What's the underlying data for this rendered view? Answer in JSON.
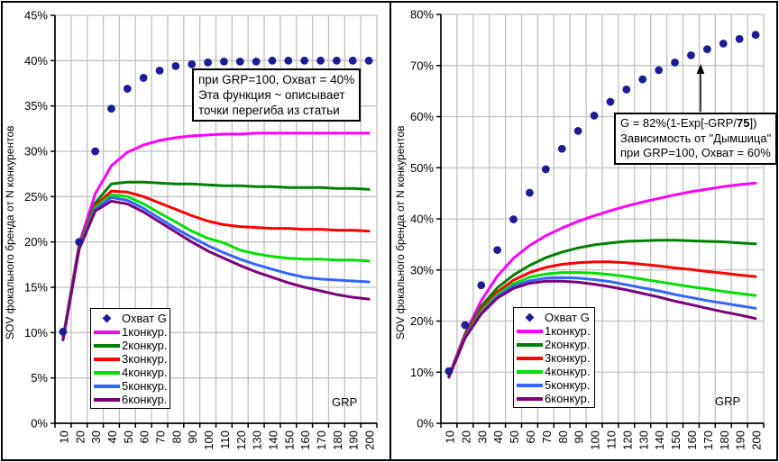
{
  "style": {
    "background": "#ffffff",
    "border_color": "#000000",
    "grid_color": "#c0c0c0",
    "axis_color": "#000000",
    "text_color": "#000000",
    "annotation_border": "#000000"
  },
  "chart_data": [
    {
      "type": "line",
      "title": "",
      "xlabel": "GRP",
      "ylabel": "SOV фокального бренда от N конкурентов",
      "xlim_categories": true,
      "ylim": [
        0,
        45
      ],
      "y_step": 5,
      "grid": true,
      "legend_position": "bottom-left-inside",
      "categories": [
        10,
        20,
        30,
        40,
        50,
        60,
        70,
        80,
        90,
        100,
        110,
        120,
        130,
        140,
        150,
        160,
        170,
        180,
        190,
        200
      ],
      "y_tick_labels": [
        "0%",
        "5%",
        "10%",
        "15%",
        "20%",
        "25%",
        "30%",
        "35%",
        "40%",
        "45%"
      ],
      "scatter": {
        "name": "Охват G",
        "marker": "circle",
        "legend_marker": "diamond",
        "color": "#1c1c96",
        "values": [
          10.1,
          20,
          30,
          34.7,
          36.9,
          38.1,
          38.9,
          39.4,
          39.6,
          39.8,
          39.9,
          39.9,
          39.9,
          40,
          40,
          40,
          40,
          40,
          40,
          40
        ]
      },
      "series": [
        {
          "name": "1конкур.",
          "color": "#ff00ff",
          "values": [
            9.4,
            19.8,
            25.3,
            28.4,
            29.9,
            30.7,
            31.2,
            31.5,
            31.7,
            31.8,
            31.9,
            31.9,
            32,
            32,
            32,
            32,
            32,
            32,
            32,
            32
          ]
        },
        {
          "name": "2конкур.",
          "color": "#008000",
          "values": [
            9.4,
            19.6,
            24.3,
            26.4,
            26.6,
            26.6,
            26.5,
            26.4,
            26.4,
            26.3,
            26.2,
            26.2,
            26.1,
            26.1,
            26,
            26,
            26,
            25.9,
            25.9,
            25.8
          ]
        },
        {
          "name": "3конкур.",
          "color": "#ff0000",
          "values": [
            9.3,
            19.5,
            24,
            25.6,
            25.5,
            25,
            24.3,
            23.6,
            22.9,
            22.3,
            21.9,
            21.7,
            21.6,
            21.5,
            21.5,
            21.4,
            21.4,
            21.3,
            21.3,
            21.2
          ]
        },
        {
          "name": "4конкур.",
          "color": "#00e000",
          "values": [
            9.3,
            19.4,
            23.8,
            25.2,
            25,
            24.2,
            23.2,
            22.2,
            21.2,
            20.4,
            19.9,
            19.1,
            18.7,
            18.4,
            18.2,
            18.1,
            18.1,
            18,
            18,
            17.9
          ]
        },
        {
          "name": "5конкур.",
          "color": "#3366ff",
          "values": [
            9.2,
            19.3,
            23.6,
            24.9,
            24.6,
            23.7,
            22.6,
            21.5,
            20.5,
            19.6,
            18.8,
            18.1,
            17.5,
            17,
            16.5,
            16.1,
            15.9,
            15.8,
            15.7,
            15.6
          ]
        },
        {
          "name": "6конкур.",
          "color": "#7b007b",
          "values": [
            9.2,
            19.2,
            23.4,
            24.5,
            24.2,
            23.3,
            22.2,
            21.1,
            20,
            19,
            18.2,
            17.4,
            16.7,
            16.1,
            15.5,
            15,
            14.6,
            14.2,
            13.9,
            13.7
          ]
        }
      ],
      "annotation": {
        "lines": [
          "при GRP=100, Охват = 40%",
          "Эта функция ~ описывает",
          "точки перегиба из статьи"
        ]
      }
    },
    {
      "type": "line",
      "title": "",
      "xlabel": "GRP",
      "ylabel": "SOV фокального бренда от N конкурентов",
      "xlim_categories": true,
      "ylim": [
        0,
        80
      ],
      "y_step": 10,
      "grid": true,
      "legend_position": "bottom-center-inside",
      "categories": [
        10,
        20,
        30,
        40,
        50,
        60,
        70,
        80,
        90,
        100,
        110,
        120,
        130,
        140,
        150,
        160,
        170,
        180,
        190,
        200
      ],
      "y_tick_labels": [
        "0%",
        "10%",
        "20%",
        "30%",
        "40%",
        "50%",
        "60%",
        "70%",
        "80%"
      ],
      "scatter": {
        "name": "Охват G",
        "marker": "circle",
        "legend_marker": "diamond",
        "color": "#1c1c96",
        "values": [
          10.2,
          19.2,
          27,
          33.9,
          39.9,
          45.1,
          49.7,
          53.7,
          57.2,
          60.2,
          62.9,
          65.3,
          67.3,
          69.1,
          70.6,
          72,
          73.2,
          74.3,
          75.2,
          76
        ]
      },
      "series": [
        {
          "name": "1конкур.",
          "color": "#ff00ff",
          "values": [
            9.3,
            17.6,
            24,
            28.8,
            32.3,
            34.8,
            36.7,
            38.2,
            39.5,
            40.6,
            41.6,
            42.5,
            43.3,
            44,
            44.7,
            45.3,
            45.8,
            46.3,
            46.7,
            47
          ]
        },
        {
          "name": "2конкур.",
          "color": "#008000",
          "values": [
            9.2,
            17.3,
            22.9,
            26.5,
            29,
            30.9,
            32.4,
            33.5,
            34.3,
            34.9,
            35.3,
            35.6,
            35.7,
            35.8,
            35.8,
            35.7,
            35.6,
            35.5,
            35.3,
            35.1
          ]
        },
        {
          "name": "3конкур.",
          "color": "#ff0000",
          "values": [
            9.2,
            17.1,
            22.3,
            25.7,
            28,
            29.5,
            30.5,
            31.1,
            31.4,
            31.6,
            31.6,
            31.4,
            31.1,
            30.8,
            30.4,
            30.1,
            29.7,
            29.4,
            29,
            28.7
          ]
        },
        {
          "name": "4конкур.",
          "color": "#00e000",
          "values": [
            9.1,
            16.9,
            21.9,
            25.2,
            27.3,
            28.6,
            29.2,
            29.5,
            29.5,
            29.4,
            29.1,
            28.7,
            28.2,
            27.7,
            27.2,
            26.7,
            26.3,
            25.8,
            25.4,
            25
          ]
        },
        {
          "name": "5конкур.",
          "color": "#3366ff",
          "values": [
            9.1,
            16.8,
            21.6,
            24.8,
            26.8,
            27.9,
            28.4,
            28.5,
            28.4,
            28.1,
            27.7,
            27.1,
            26.5,
            25.9,
            25.2,
            24.6,
            24,
            23.5,
            23,
            22.5
          ]
        },
        {
          "name": "6конкур.",
          "color": "#7b007b",
          "values": [
            9,
            16.7,
            21.4,
            24.5,
            26.4,
            27.4,
            27.8,
            27.8,
            27.6,
            27.2,
            26.7,
            26.1,
            25.4,
            24.7,
            23.9,
            23.2,
            22.5,
            21.8,
            21.2,
            20.5
          ]
        }
      ],
      "annotation": {
        "formula_pre": "G = 82%(1-Exp[-GRP/",
        "formula_bold": "75",
        "formula_post": "])",
        "lines": [
          "Зависимость от \"Дымшица\"",
          "при GRP=100, Охват = 60%"
        ],
        "has_arrow": true
      }
    }
  ]
}
